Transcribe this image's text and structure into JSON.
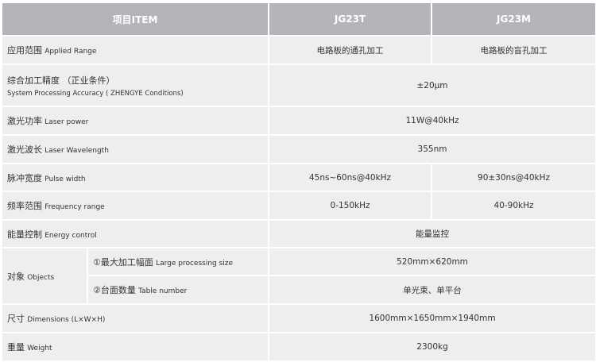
{
  "header": {
    "item": "项目ITEM",
    "col1": "JG23T",
    "col2": "JG23M"
  },
  "rows": [
    {
      "cn": "应用范围",
      "en": "Applied Range",
      "v1": "电路板的通孔加工",
      "v2": "电路板的盲孔加工"
    },
    {
      "cn": "综合加工精度 （正业条件）",
      "en": "System Processing Accuracy ( ZHENGYE Conditions)",
      "v": "±20μm"
    },
    {
      "cn": "激光功率",
      "en": "Laser power",
      "v": "11W@40kHz"
    },
    {
      "cn": "激光波长",
      "en": "Laser Wavelength",
      "v": "355nm"
    },
    {
      "cn": "脉冲宽度",
      "en": "Pulse width",
      "v1": "45ns~60ns@40kHz",
      "v2": "90±30ns@40kHz"
    },
    {
      "cn": "频率范围",
      "en": "Frequency range",
      "v1": "0-150kHz",
      "v2": "40-90kHz"
    },
    {
      "cn": "能量控制",
      "en": "Energy control",
      "v": "能量监控"
    },
    {
      "cn": "对象",
      "en": "Objects",
      "subs": [
        {
          "cn": "①最大加工幅面",
          "en": "Large processing size",
          "v": "520mm×620mm"
        },
        {
          "cn": "②台面数量",
          "en": "Table number",
          "v": "单光束、单平台"
        }
      ]
    },
    {
      "cn": "尺寸",
      "en": "Dimensions (L×W×H)",
      "v": "1600mm×1650mm×1940mm"
    },
    {
      "cn": "重量",
      "en": "Weight",
      "v": "2300kg"
    }
  ]
}
